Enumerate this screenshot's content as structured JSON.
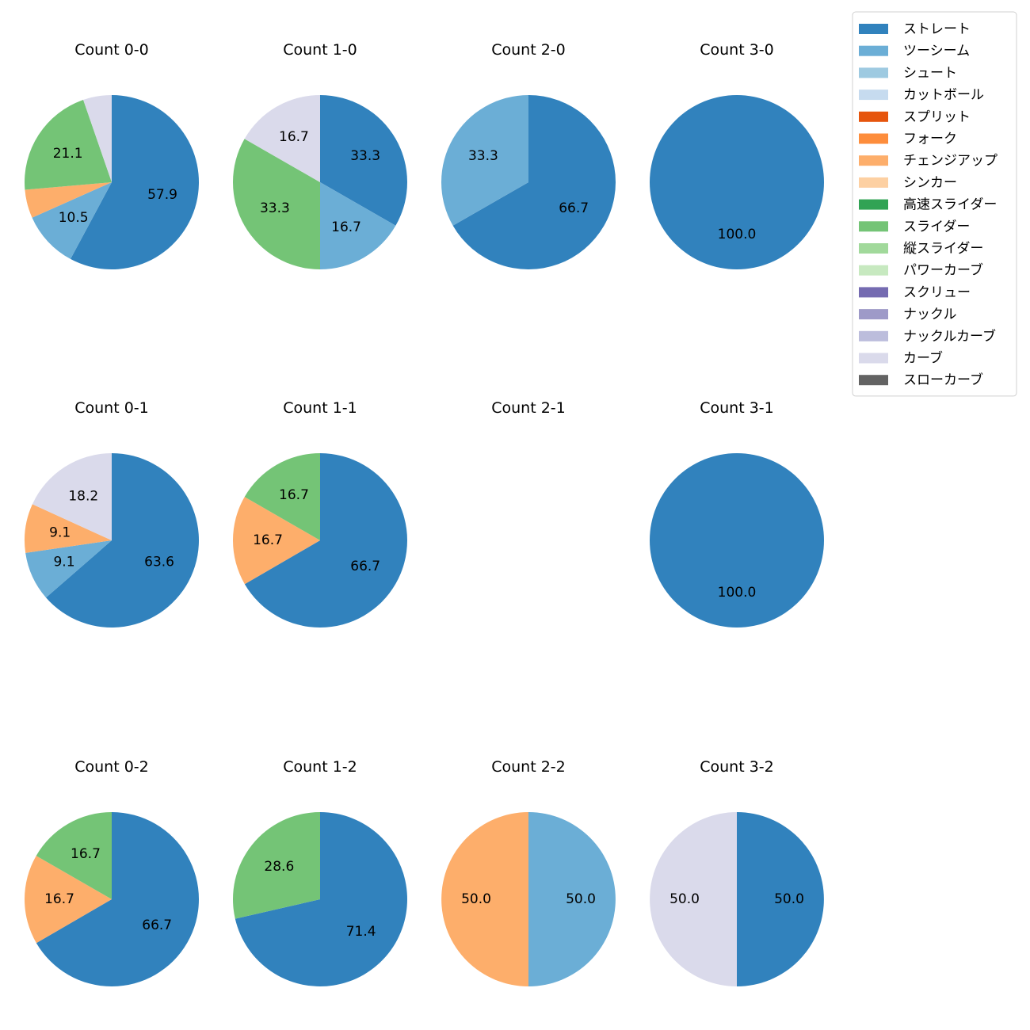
{
  "chart_data": {
    "type": "pie",
    "legend": {
      "placement": "top-right",
      "entries": [
        {
          "name": "ストレート",
          "color": "#3182bd"
        },
        {
          "name": "ツーシーム",
          "color": "#6baed6"
        },
        {
          "name": "シュート",
          "color": "#9ecae1"
        },
        {
          "name": "カットボール",
          "color": "#c6dbef"
        },
        {
          "name": "スプリット",
          "color": "#e6550d"
        },
        {
          "name": "フォーク",
          "color": "#fd8d3c"
        },
        {
          "name": "チェンジアップ",
          "color": "#fdae6b"
        },
        {
          "name": "シンカー",
          "color": "#fdd0a2"
        },
        {
          "name": "高速スライダー",
          "color": "#31a354"
        },
        {
          "name": "スライダー",
          "color": "#74c476"
        },
        {
          "name": "縦スライダー",
          "color": "#a1d99b"
        },
        {
          "name": "パワーカーブ",
          "color": "#c7e9c0"
        },
        {
          "name": "スクリュー",
          "color": "#756bb1"
        },
        {
          "name": "ナックル",
          "color": "#9e9ac8"
        },
        {
          "name": "ナックルカーブ",
          "color": "#bcbddc"
        },
        {
          "name": "カーブ",
          "color": "#dadaeb"
        },
        {
          "name": "スローカーブ",
          "color": "#636363"
        }
      ]
    },
    "charts": [
      {
        "title": "Count 0-0",
        "slices": [
          {
            "pitch": "ストレート",
            "value": 57.9
          },
          {
            "pitch": "ツーシーム",
            "value": 10.5
          },
          {
            "pitch": "チェンジアップ",
            "value": 5.3
          },
          {
            "pitch": "スライダー",
            "value": 21.1
          },
          {
            "pitch": "カーブ",
            "value": 5.3
          }
        ]
      },
      {
        "title": "Count 1-0",
        "slices": [
          {
            "pitch": "ストレート",
            "value": 33.3
          },
          {
            "pitch": "ツーシーム",
            "value": 16.7
          },
          {
            "pitch": "スライダー",
            "value": 33.3
          },
          {
            "pitch": "カーブ",
            "value": 16.7
          }
        ]
      },
      {
        "title": "Count 2-0",
        "slices": [
          {
            "pitch": "ストレート",
            "value": 66.7
          },
          {
            "pitch": "ツーシーム",
            "value": 33.3
          }
        ]
      },
      {
        "title": "Count 3-0",
        "slices": [
          {
            "pitch": "ストレート",
            "value": 100.0
          }
        ]
      },
      {
        "title": "Count 0-1",
        "slices": [
          {
            "pitch": "ストレート",
            "value": 63.6
          },
          {
            "pitch": "ツーシーム",
            "value": 9.1
          },
          {
            "pitch": "チェンジアップ",
            "value": 9.1
          },
          {
            "pitch": "カーブ",
            "value": 18.2
          }
        ]
      },
      {
        "title": "Count 1-1",
        "slices": [
          {
            "pitch": "ストレート",
            "value": 66.7
          },
          {
            "pitch": "チェンジアップ",
            "value": 16.7
          },
          {
            "pitch": "スライダー",
            "value": 16.7
          }
        ]
      },
      {
        "title": "Count 2-1",
        "slices": []
      },
      {
        "title": "Count 3-1",
        "slices": [
          {
            "pitch": "ストレート",
            "value": 100.0
          }
        ]
      },
      {
        "title": "Count 0-2",
        "slices": [
          {
            "pitch": "ストレート",
            "value": 66.7
          },
          {
            "pitch": "チェンジアップ",
            "value": 16.7
          },
          {
            "pitch": "スライダー",
            "value": 16.7
          }
        ]
      },
      {
        "title": "Count 1-2",
        "slices": [
          {
            "pitch": "ストレート",
            "value": 71.4
          },
          {
            "pitch": "スライダー",
            "value": 28.6
          }
        ]
      },
      {
        "title": "Count 2-2",
        "slices": [
          {
            "pitch": "ツーシーム",
            "value": 50.0
          },
          {
            "pitch": "チェンジアップ",
            "value": 50.0
          }
        ]
      },
      {
        "title": "Count 3-2",
        "slices": [
          {
            "pitch": "ストレート",
            "value": 50.0
          },
          {
            "pitch": "カーブ",
            "value": 50.0
          }
        ]
      }
    ]
  }
}
